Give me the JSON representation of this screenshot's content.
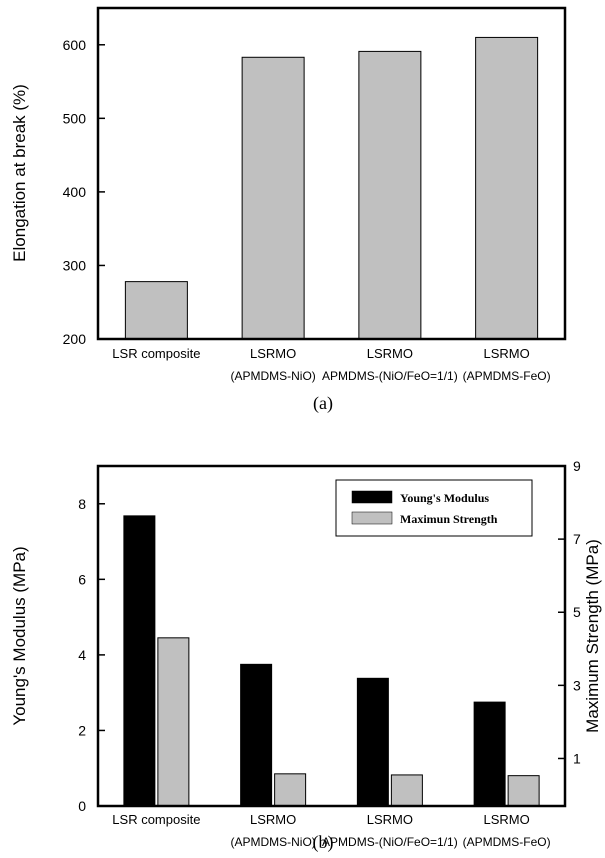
{
  "chart_data": [
    {
      "type": "bar",
      "caption": "(a)",
      "categories": [
        [
          "LSR composite"
        ],
        [
          "LSRMO",
          "(APMDMS-NiO)"
        ],
        [
          "LSRMO",
          "APMDMS-(NiO/FeO=1/1)"
        ],
        [
          "LSRMO",
          "(APMDMS-FeO)"
        ]
      ],
      "values": [
        278,
        583,
        591,
        610
      ],
      "ylabel": "Elongation at break (%)",
      "ylim": [
        200,
        650
      ],
      "yticks": [
        200,
        300,
        400,
        500,
        600
      ],
      "grid": false,
      "colors": {
        "bar": "#c0c0c0"
      }
    },
    {
      "type": "bar",
      "caption": "(b)",
      "categories": [
        [
          "LSR composite"
        ],
        [
          "LSRMO",
          "(APMDMS-NiO)"
        ],
        [
          "LSRMO",
          "APMDMS-(NiO/FeO=1/1)"
        ],
        [
          "LSRMO",
          "(APMDMS-FeO)"
        ]
      ],
      "series": [
        {
          "name": "Young's Modulus",
          "axis": "left",
          "values": [
            7.68,
            3.75,
            3.38,
            2.75
          ],
          "color": "#000000"
        },
        {
          "name": "Maximun Strength",
          "axis": "right",
          "values": [
            4.3,
            0.58,
            0.55,
            0.53
          ],
          "color": "#c0c0c0"
        }
      ],
      "ylabel": "Young's Modulus (MPa)",
      "ylim": [
        0,
        9
      ],
      "yticks": [
        0,
        2,
        4,
        6,
        8
      ],
      "y2label": "Maximum Strength (MPa)",
      "y2lim": [
        -0.3,
        9
      ],
      "y2ticks": [
        1,
        3,
        5,
        7,
        9
      ],
      "legend": "top-right",
      "grid": false
    }
  ]
}
